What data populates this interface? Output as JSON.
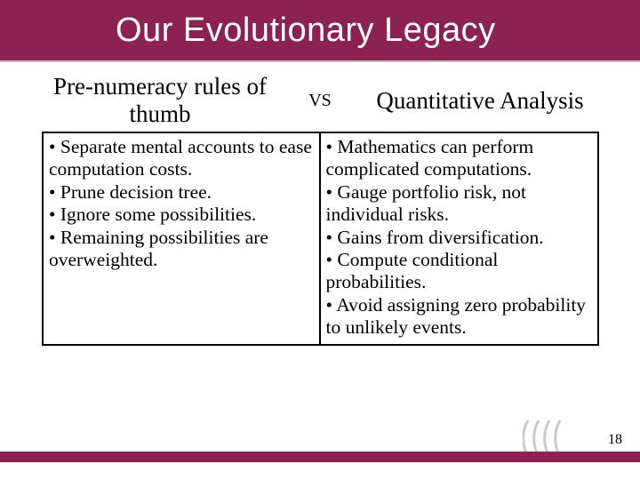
{
  "title": "Our Evolutionary Legacy",
  "left_header": "Pre-numeracy rules of thumb",
  "vs": "VS",
  "right_header": "Quantitative Analysis",
  "left_bullets": [
    "Separate mental accounts to ease computation costs.",
    "Prune decision tree.",
    "Ignore some possibilities.",
    "Remaining possibilities are overweighted."
  ],
  "right_bullets": [
    "Mathematics can perform complicated computations.",
    "Gauge portfolio risk, not individual risks.",
    "Gains from diversification.",
    "Compute conditional probabilities.",
    "Avoid assigning zero probability to unlikely events."
  ],
  "page_number": "18",
  "colors": {
    "brand": "#8c2252",
    "underline": "#bfbfbf",
    "text": "#000000",
    "arc_stroke": "#c9c9c9",
    "background": "#ffffff"
  },
  "fonts": {
    "title_family": "Verdana",
    "title_size_pt": 28,
    "header_size_pt": 20,
    "body_size_pt": 16,
    "vs_size_pt": 15
  }
}
